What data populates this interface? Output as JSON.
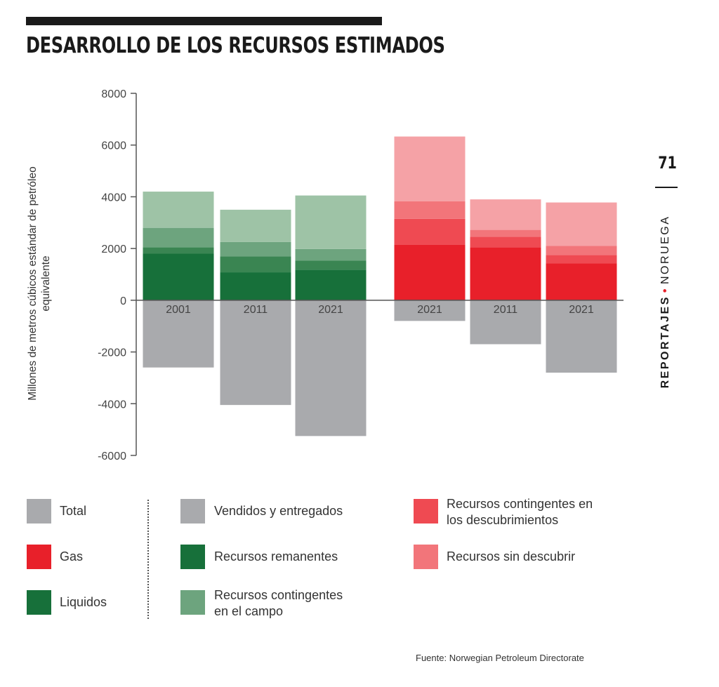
{
  "title": "DESARROLLO DE LOS RECURSOS ESTIMADOS",
  "side": {
    "page_number": "71",
    "section": "REPORTAJES",
    "separator": "•",
    "country": "NORUEGA"
  },
  "source": "Fuente: Norwegian Petroleum Directorate",
  "legend": {
    "total": "Total",
    "gas": "Gas",
    "liquidos": "Liquidos",
    "vendidos": "Vendidos y entregados",
    "remanentes": "Recursos remanentes",
    "contingentes_campo_1": "Recursos contingentes",
    "contingentes_campo_2": "en el campo",
    "contingentes_desc_1": "Recursos contingentes en",
    "contingentes_desc_2": "los descubrimientos",
    "sin_descubrir": "Recursos sin descubrir"
  },
  "colors": {
    "sold": "#a9aaad",
    "liquids_remaining": "#17703a",
    "liquids_mid": "#3a8552",
    "liquids_contingent_field": "#6da47e",
    "liquids_undiscovered": "#9ec3a6",
    "gas_remaining": "#e8202a",
    "gas_contingent_field": "#ef4a52",
    "gas_contingent_discoveries": "#f2757a",
    "gas_undiscovered": "#f5a2a6"
  },
  "chart_data": {
    "type": "bar",
    "ylabel": "Millones de metros cúbicos estándar de petróleo equivalente",
    "ylim": [
      -6000,
      8000
    ],
    "yticks": [
      8000,
      6000,
      4000,
      2000,
      0,
      -2000,
      -4000,
      -6000
    ],
    "ytick_labels": [
      "8000",
      "6000",
      "4000",
      "2000",
      "0",
      "-2000",
      "-4000",
      "-6000"
    ],
    "categories": [
      "2001",
      "2011",
      "2021",
      "2021",
      "2011",
      "2021"
    ],
    "groups": [
      {
        "kind": "liquids",
        "bars": [
          {
            "label": "2001",
            "sold": -2600,
            "stack": [
              {
                "key": "liquids_remaining",
                "value": 1800
              },
              {
                "key": "liquids_mid",
                "value": 250
              },
              {
                "key": "liquids_contingent_field",
                "value": 750
              },
              {
                "key": "liquids_undiscovered",
                "value": 1400
              }
            ]
          },
          {
            "label": "2011",
            "sold": -4050,
            "stack": [
              {
                "key": "liquids_remaining",
                "value": 1080
              },
              {
                "key": "liquids_mid",
                "value": 620
              },
              {
                "key": "liquids_contingent_field",
                "value": 550
              },
              {
                "key": "liquids_undiscovered",
                "value": 1250
              }
            ]
          },
          {
            "label": "2021",
            "sold": -5250,
            "stack": [
              {
                "key": "liquids_remaining",
                "value": 1180
              },
              {
                "key": "liquids_mid",
                "value": 350
              },
              {
                "key": "liquids_contingent_field",
                "value": 450
              },
              {
                "key": "liquids_undiscovered",
                "value": 2070
              }
            ]
          }
        ]
      },
      {
        "kind": "gas",
        "bars": [
          {
            "label": "2021",
            "sold": -800,
            "stack": [
              {
                "key": "gas_remaining",
                "value": 2150
              },
              {
                "key": "gas_contingent_field",
                "value": 1000
              },
              {
                "key": "gas_contingent_discoveries",
                "value": 680
              },
              {
                "key": "gas_undiscovered",
                "value": 2500
              }
            ]
          },
          {
            "label": "2011",
            "sold": -1700,
            "stack": [
              {
                "key": "gas_remaining",
                "value": 2050
              },
              {
                "key": "gas_contingent_field",
                "value": 400
              },
              {
                "key": "gas_contingent_discoveries",
                "value": 270
              },
              {
                "key": "gas_undiscovered",
                "value": 1180
              }
            ]
          },
          {
            "label": "2021",
            "sold": -2800,
            "stack": [
              {
                "key": "gas_remaining",
                "value": 1420
              },
              {
                "key": "gas_contingent_field",
                "value": 330
              },
              {
                "key": "gas_contingent_discoveries",
                "value": 350
              },
              {
                "key": "gas_undiscovered",
                "value": 1680
              }
            ]
          }
        ]
      }
    ]
  }
}
